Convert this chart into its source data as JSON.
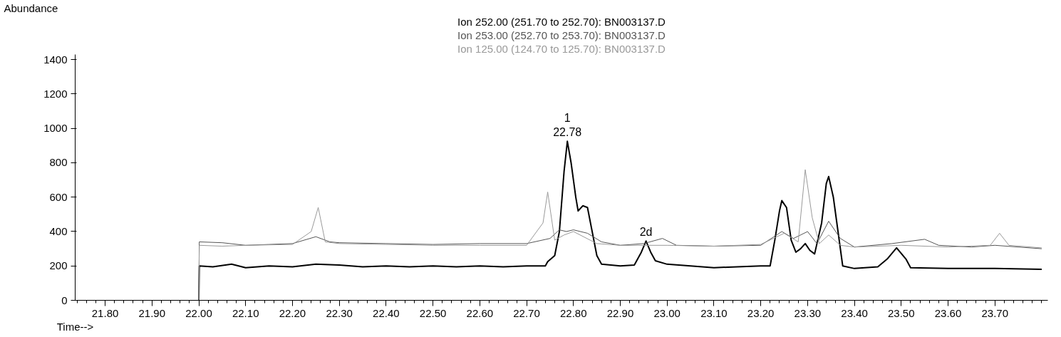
{
  "chart_data": {
    "type": "line",
    "xlabel": "Time-->",
    "ylabel": "Abundance",
    "xlim": [
      21.736,
      23.813
    ],
    "ylim": [
      0,
      1430
    ],
    "xticks": [
      {
        "value": 21.8,
        "label": "21.80"
      },
      {
        "value": 21.9,
        "label": "21.90"
      },
      {
        "value": 22.0,
        "label": "22.00"
      },
      {
        "value": 22.1,
        "label": "22.10"
      },
      {
        "value": 22.2,
        "label": "22.20"
      },
      {
        "value": 22.3,
        "label": "22.30"
      },
      {
        "value": 22.4,
        "label": "22.40"
      },
      {
        "value": 22.5,
        "label": "22.50"
      },
      {
        "value": 22.6,
        "label": "22.60"
      },
      {
        "value": 22.7,
        "label": "22.70"
      },
      {
        "value": 22.8,
        "label": "22.80"
      },
      {
        "value": 22.9,
        "label": "22.90"
      },
      {
        "value": 23.0,
        "label": "23.00"
      },
      {
        "value": 23.1,
        "label": "23.10"
      },
      {
        "value": 23.2,
        "label": "23.20"
      },
      {
        "value": 23.3,
        "label": "23.30"
      },
      {
        "value": 23.4,
        "label": "23.40"
      },
      {
        "value": 23.5,
        "label": "23.50"
      },
      {
        "value": 23.6,
        "label": "23.60"
      },
      {
        "value": 23.7,
        "label": "23.70"
      }
    ],
    "yticks": [
      0,
      200,
      400,
      600,
      800,
      1000,
      1200,
      1400
    ],
    "grid": false,
    "marker": "none",
    "line_style": "solid",
    "series": [
      {
        "name": "Ion 252.00 (251.70 to 252.70): BN003137.D",
        "color": "#000000",
        "x": [
          22.0,
          22.001,
          22.03,
          22.07,
          22.1,
          22.15,
          22.2,
          22.25,
          22.3,
          22.35,
          22.4,
          22.45,
          22.5,
          22.55,
          22.6,
          22.65,
          22.7,
          22.74,
          22.745,
          22.76,
          22.77,
          22.78,
          22.787,
          22.795,
          22.805,
          22.81,
          22.82,
          22.83,
          22.84,
          22.85,
          22.86,
          22.9,
          22.93,
          22.945,
          22.955,
          22.965,
          22.975,
          23.0,
          23.05,
          23.1,
          23.15,
          23.2,
          23.22,
          23.23,
          23.24,
          23.245,
          23.255,
          23.265,
          23.275,
          23.285,
          23.295,
          23.305,
          23.315,
          23.33,
          23.34,
          23.345,
          23.355,
          23.365,
          23.375,
          23.4,
          23.45,
          23.47,
          23.49,
          23.51,
          23.52,
          23.6,
          23.7,
          23.8
        ],
        "values": [
          0,
          200,
          195,
          210,
          190,
          200,
          195,
          210,
          205,
          195,
          200,
          195,
          200,
          195,
          200,
          195,
          200,
          200,
          225,
          260,
          400,
          750,
          925,
          800,
          600,
          520,
          550,
          540,
          400,
          260,
          210,
          200,
          205,
          280,
          345,
          280,
          230,
          210,
          200,
          190,
          195,
          200,
          200,
          350,
          520,
          580,
          540,
          350,
          280,
          300,
          330,
          290,
          270,
          450,
          680,
          720,
          600,
          400,
          200,
          185,
          195,
          240,
          305,
          240,
          190,
          185,
          185,
          180
        ]
      },
      {
        "name": "Ion 253.00 (252.70 to 253.70): BN003137.D",
        "color": "#555555",
        "x": [
          22.0,
          22.001,
          22.05,
          22.1,
          22.15,
          22.2,
          22.25,
          22.28,
          22.3,
          22.4,
          22.5,
          22.6,
          22.7,
          22.75,
          22.77,
          22.785,
          22.8,
          22.83,
          22.86,
          22.9,
          22.95,
          22.99,
          23.02,
          23.1,
          23.2,
          23.245,
          23.27,
          23.3,
          23.32,
          23.345,
          23.37,
          23.4,
          23.48,
          23.55,
          23.58,
          23.65,
          23.7,
          23.8
        ],
        "values": [
          0,
          340,
          335,
          320,
          325,
          330,
          370,
          340,
          335,
          330,
          325,
          330,
          330,
          360,
          410,
          400,
          410,
          390,
          340,
          320,
          330,
          360,
          320,
          315,
          320,
          400,
          360,
          400,
          330,
          460,
          360,
          310,
          330,
          355,
          320,
          310,
          320,
          300
        ]
      },
      {
        "name": "Ion 125.00 (124.70 to 125.70): BN003137.D",
        "color": "#999999",
        "x": [
          22.0,
          22.001,
          22.05,
          22.1,
          22.2,
          22.24,
          22.255,
          22.27,
          22.3,
          22.4,
          22.5,
          22.6,
          22.7,
          22.735,
          22.745,
          22.76,
          22.78,
          22.8,
          22.85,
          22.9,
          23.0,
          23.1,
          23.2,
          23.25,
          23.28,
          23.295,
          23.31,
          23.325,
          23.345,
          23.37,
          23.4,
          23.5,
          23.6,
          23.69,
          23.71,
          23.73,
          23.8
        ],
        "values": [
          0,
          320,
          315,
          320,
          325,
          400,
          540,
          340,
          330,
          325,
          320,
          320,
          320,
          450,
          630,
          350,
          380,
          400,
          330,
          320,
          320,
          315,
          325,
          390,
          340,
          760,
          480,
          330,
          380,
          320,
          310,
          320,
          310,
          320,
          390,
          320,
          305
        ]
      }
    ],
    "annotations": [
      {
        "text": "1\n22.78",
        "x": 22.787,
        "y": 925
      },
      {
        "text": "2d",
        "x": 22.955,
        "y": 345
      }
    ]
  }
}
